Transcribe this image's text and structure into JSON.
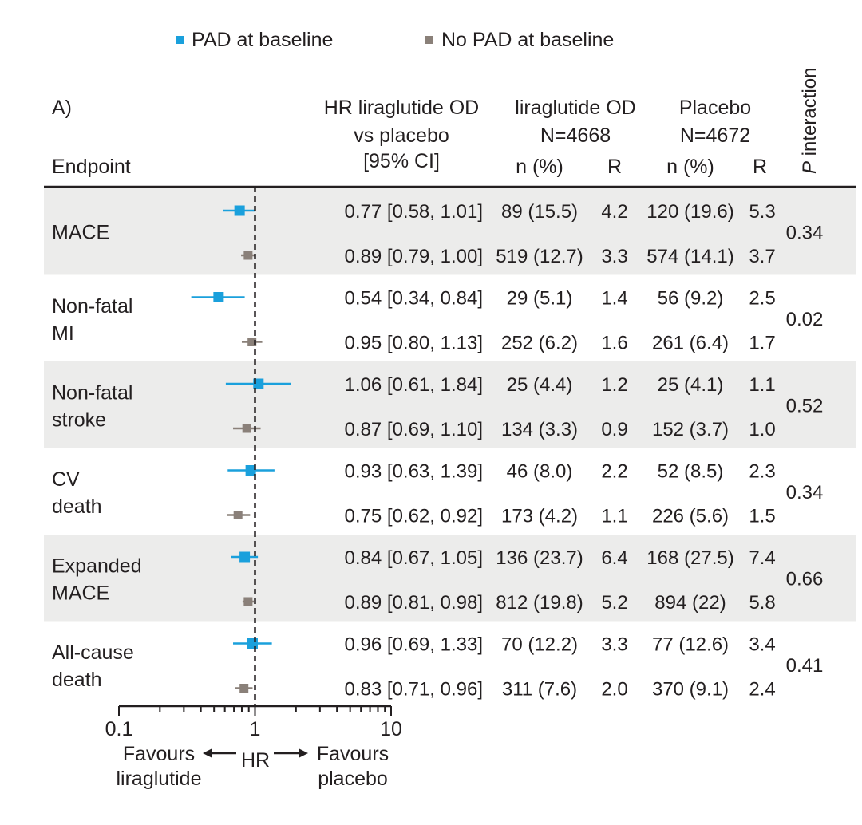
{
  "chart_data": {
    "type": "forest",
    "panel_label": "A)",
    "legend": [
      {
        "name": "PAD at baseline",
        "color": "#1aa0dc"
      },
      {
        "name": "No PAD at baseline",
        "color": "#8a8079"
      }
    ],
    "headers": {
      "endpoint": "Endpoint",
      "hr_line1": "HR liraglutide OD",
      "hr_line2": "vs placebo",
      "hr_line3": "[95% CI]",
      "lira_line1": "liraglutide OD",
      "lira_line2": "N=4668",
      "placebo_line1": "Placebo",
      "placebo_line2": "N=4672",
      "n_pct": "n (%)",
      "r": "R",
      "p_interaction_italic": "P",
      "p_interaction_rest": " interaction"
    },
    "x_axis": {
      "scale": "log",
      "min": 0.1,
      "max": 10,
      "reference": 1,
      "ticks": [
        "0.1",
        "1",
        "10"
      ],
      "left_label_line1": "Favours",
      "left_label_line2": "liraglutide",
      "center_label": "HR",
      "right_label_line1": "Favours",
      "right_label_line2": "placebo"
    },
    "groups": [
      {
        "endpoint": [
          "MACE"
        ],
        "p": "0.34",
        "shaded": true,
        "rows": [
          {
            "subgroup": "PAD at baseline",
            "hr": 0.77,
            "lo": 0.58,
            "hi": 1.01,
            "hr_text": "0.77 [0.58, 1.01]",
            "lira_n": "89 (15.5)",
            "lira_r": "4.2",
            "pbo_n": "120 (19.6)",
            "pbo_r": "5.3"
          },
          {
            "subgroup": "No PAD at baseline",
            "hr": 0.89,
            "lo": 0.79,
            "hi": 1.0,
            "hr_text": "0.89 [0.79, 1.00]",
            "lira_n": "519 (12.7)",
            "lira_r": "3.3",
            "pbo_n": "574 (14.1)",
            "pbo_r": "3.7"
          }
        ]
      },
      {
        "endpoint": [
          "Non-fatal",
          "MI"
        ],
        "p": "0.02",
        "shaded": false,
        "rows": [
          {
            "subgroup": "PAD at baseline",
            "hr": 0.54,
            "lo": 0.34,
            "hi": 0.84,
            "hr_text": "0.54 [0.34, 0.84]",
            "lira_n": "29 (5.1)",
            "lira_r": "1.4",
            "pbo_n": "56 (9.2)",
            "pbo_r": "2.5"
          },
          {
            "subgroup": "No PAD at baseline",
            "hr": 0.95,
            "lo": 0.8,
            "hi": 1.13,
            "hr_text": "0.95 [0.80, 1.13]",
            "lira_n": "252 (6.2)",
            "lira_r": "1.6",
            "pbo_n": "261 (6.4)",
            "pbo_r": "1.7"
          }
        ]
      },
      {
        "endpoint": [
          "Non-fatal",
          "stroke"
        ],
        "p": "0.52",
        "shaded": true,
        "rows": [
          {
            "subgroup": "PAD at baseline",
            "hr": 1.06,
            "lo": 0.61,
            "hi": 1.84,
            "hr_text": "1.06 [0.61, 1.84]",
            "lira_n": "25 (4.4)",
            "lira_r": "1.2",
            "pbo_n": "25 (4.1)",
            "pbo_r": "1.1"
          },
          {
            "subgroup": "No PAD at baseline",
            "hr": 0.87,
            "lo": 0.69,
            "hi": 1.1,
            "hr_text": "0.87 [0.69, 1.10]",
            "lira_n": "134 (3.3)",
            "lira_r": "0.9",
            "pbo_n": "152 (3.7)",
            "pbo_r": "1.0"
          }
        ]
      },
      {
        "endpoint": [
          "CV",
          "death"
        ],
        "p": "0.34",
        "shaded": false,
        "rows": [
          {
            "subgroup": "PAD at baseline",
            "hr": 0.93,
            "lo": 0.63,
            "hi": 1.39,
            "hr_text": "0.93 [0.63, 1.39]",
            "lira_n": "46 (8.0)",
            "lira_r": "2.2",
            "pbo_n": "52 (8.5)",
            "pbo_r": "2.3"
          },
          {
            "subgroup": "No PAD at baseline",
            "hr": 0.75,
            "lo": 0.62,
            "hi": 0.92,
            "hr_text": "0.75 [0.62, 0.92]",
            "lira_n": "173 (4.2)",
            "lira_r": "1.1",
            "pbo_n": "226 (5.6)",
            "pbo_r": "1.5"
          }
        ]
      },
      {
        "endpoint": [
          "Expanded",
          "MACE"
        ],
        "p": "0.66",
        "shaded": true,
        "rows": [
          {
            "subgroup": "PAD at baseline",
            "hr": 0.84,
            "lo": 0.67,
            "hi": 1.05,
            "hr_text": "0.84 [0.67, 1.05]",
            "lira_n": "136 (23.7)",
            "lira_r": "6.4",
            "pbo_n": "168 (27.5)",
            "pbo_r": "7.4"
          },
          {
            "subgroup": "No PAD at baseline",
            "hr": 0.89,
            "lo": 0.81,
            "hi": 0.98,
            "hr_text": "0.89 [0.81, 0.98]",
            "lira_n": "812 (19.8)",
            "lira_r": "5.2",
            "pbo_n": "894 (22)",
            "pbo_r": "5.8"
          }
        ]
      },
      {
        "endpoint": [
          "All-cause",
          "death"
        ],
        "p": "0.41",
        "shaded": false,
        "rows": [
          {
            "subgroup": "PAD at baseline",
            "hr": 0.96,
            "lo": 0.69,
            "hi": 1.33,
            "hr_text": "0.96 [0.69, 1.33]",
            "lira_n": "70 (12.2)",
            "lira_r": "3.3",
            "pbo_n": "77 (12.6)",
            "pbo_r": "3.4"
          },
          {
            "subgroup": "No PAD at baseline",
            "hr": 0.83,
            "lo": 0.71,
            "hi": 0.96,
            "hr_text": "0.83 [0.71, 0.96]",
            "lira_n": "311 (7.6)",
            "lira_r": "2.0",
            "pbo_n": "370 (9.1)",
            "pbo_r": "2.4"
          }
        ]
      }
    ]
  }
}
